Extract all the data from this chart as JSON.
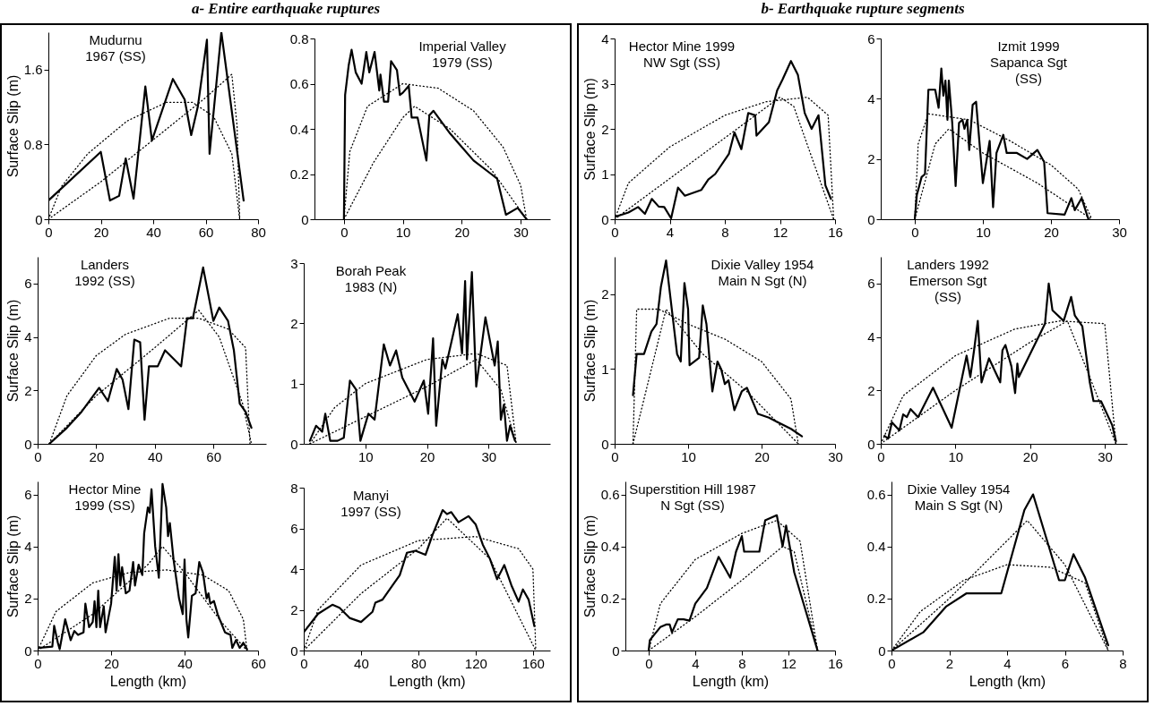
{
  "chart_data": [
    {
      "type": "line",
      "title": "a- Entire earthquake ruptures",
      "ylabel": "Surface Slip (m)",
      "annotations": [
        "Mudurnu\n1967 (SS)"
      ],
      "xlim": [
        0,
        80
      ],
      "xticks": [
        0,
        20,
        40,
        60,
        80
      ],
      "ylim": [
        0,
        2
      ],
      "yticks": [
        0,
        0.8,
        1.6
      ],
      "grid": false,
      "series": [
        {
          "color": "#000000",
          "line_style": "solid",
          "x": [
            0,
            20,
            23.5,
            27,
            29.5,
            32.5,
            37,
            39.5,
            47.5,
            52,
            54.5,
            57,
            60.5,
            61.5,
            66,
            74.5
          ],
          "values": [
            0.2,
            0.72,
            0.2,
            0.25,
            0.65,
            0.22,
            1.42,
            0.84,
            1.5,
            1.28,
            0.9,
            1.2,
            1.92,
            0.7,
            2.0,
            0.2
          ]
        },
        {
          "color": "#000000",
          "line_style": "dotted",
          "x": [
            0,
            5,
            15,
            30,
            45,
            55,
            63,
            70,
            73
          ],
          "values": [
            0,
            0.35,
            0.7,
            1.05,
            1.25,
            1.25,
            1.1,
            0.7,
            0
          ]
        },
        {
          "color": "#000000",
          "line_style": "dotted",
          "x": [
            0,
            20,
            40,
            60,
            70,
            72,
            73
          ],
          "values": [
            0,
            0.4,
            0.85,
            1.3,
            1.55,
            1.0,
            0
          ]
        }
      ]
    },
    {
      "type": "line",
      "annotations": [
        "Imperial Valley\n1979 (SS)"
      ],
      "xlim": [
        -5,
        35
      ],
      "xticks": [
        0,
        10,
        20,
        30
      ],
      "ylim": [
        0,
        0.8
      ],
      "yticks": [
        0,
        0.2,
        0.4,
        0.6,
        0.8
      ],
      "grid": false,
      "series": [
        {
          "color": "#000000",
          "line_style": "solid",
          "x": [
            0,
            0.2,
            0.8,
            1.3,
            2,
            3,
            3.8,
            4.3,
            5.2,
            6,
            6.2,
            6.8,
            7.5,
            8,
            9,
            9.5,
            10,
            11,
            11.5,
            12.5,
            14,
            14.5,
            15.2,
            18,
            22,
            25,
            26,
            27.5,
            29.5,
            31
          ],
          "values": [
            0,
            0.55,
            0.68,
            0.75,
            0.65,
            0.6,
            0.74,
            0.65,
            0.74,
            0.57,
            0.64,
            0.52,
            0.52,
            0.7,
            0.66,
            0.55,
            0.56,
            0.59,
            0.45,
            0.45,
            0.26,
            0.46,
            0.48,
            0.38,
            0.26,
            0.2,
            0.18,
            0.02,
            0.05,
            0
          ]
        },
        {
          "color": "#000000",
          "line_style": "dotted",
          "x": [
            0,
            1,
            4,
            10,
            16,
            22,
            27,
            30,
            31
          ],
          "values": [
            0,
            0.3,
            0.5,
            0.6,
            0.58,
            0.48,
            0.32,
            0.15,
            0
          ]
        },
        {
          "color": "#000000",
          "line_style": "dotted",
          "x": [
            0,
            5,
            10,
            12,
            18,
            25,
            31
          ],
          "values": [
            0,
            0.25,
            0.45,
            0.5,
            0.4,
            0.22,
            0
          ]
        }
      ]
    },
    {
      "type": "line",
      "ylabel": "Surface Slip (m)",
      "annotations": [
        "Landers\n1992 (SS)"
      ],
      "xlim": [
        0,
        78
      ],
      "xticks": [
        0,
        20,
        40,
        60
      ],
      "ylim": [
        0,
        7
      ],
      "yticks": [
        0,
        2,
        4,
        6
      ],
      "grid": false,
      "series": [
        {
          "color": "#000000",
          "line_style": "solid",
          "x": [
            4,
            10,
            15,
            21,
            24,
            27,
            29,
            31,
            33,
            35,
            36.5,
            38,
            41,
            43.5,
            49,
            51,
            53,
            56.5,
            60,
            62,
            65,
            67,
            69,
            71,
            73
          ],
          "values": [
            0,
            0.6,
            1.2,
            2.1,
            1.6,
            2.8,
            2.4,
            1.3,
            3.9,
            3.8,
            0.9,
            2.9,
            2.9,
            3.5,
            2.9,
            4.7,
            4.7,
            6.6,
            4.6,
            5.1,
            4.6,
            3.5,
            1.5,
            1.2,
            0.6
          ]
        },
        {
          "color": "#000000",
          "line_style": "dotted",
          "x": [
            4,
            10,
            20,
            30,
            45,
            55,
            65,
            71,
            72.5
          ],
          "values": [
            0,
            1.8,
            3.3,
            4.1,
            4.7,
            4.7,
            4.3,
            3.6,
            0
          ]
        },
        {
          "color": "#000000",
          "line_style": "dotted",
          "x": [
            4,
            20,
            40,
            55,
            62,
            70,
            73
          ],
          "values": [
            0,
            1.8,
            3.6,
            5.0,
            4.0,
            1.5,
            0
          ]
        }
      ]
    },
    {
      "type": "line",
      "annotations": [
        "Borah Peak\n1983 (N)"
      ],
      "xlim": [
        0,
        40
      ],
      "xticks": [
        10,
        20,
        30
      ],
      "ylim": [
        0,
        3
      ],
      "yticks": [
        0,
        1,
        2,
        3
      ],
      "grid": false,
      "series": [
        {
          "color": "#000000",
          "line_style": "solid",
          "x": [
            1,
            2,
            3,
            3.5,
            4.3,
            5.5,
            6.5,
            7.5,
            8.5,
            9.2,
            10.5,
            11.5,
            13,
            14,
            15,
            16,
            18,
            19.5,
            20.2,
            21,
            21.5,
            22.5,
            23,
            25,
            25.7,
            26.2,
            26.5,
            27.3,
            28,
            29.5,
            31,
            31.5,
            32,
            32.5,
            33,
            33.5,
            34.3
          ],
          "values": [
            0.05,
            0.3,
            0.2,
            0.5,
            0.05,
            0.05,
            0.1,
            1.05,
            0.9,
            0.05,
            0.5,
            0.4,
            1.65,
            1.3,
            1.55,
            1.1,
            0.7,
            1.05,
            0.5,
            1.75,
            0.3,
            1.4,
            1.25,
            2.15,
            1.5,
            2.7,
            1.4,
            2.85,
            0.95,
            2.1,
            1.3,
            1.7,
            0.4,
            0.65,
            0.05,
            0.3,
            0.05
          ]
        },
        {
          "color": "#000000",
          "line_style": "dotted",
          "x": [
            1,
            5,
            10,
            20,
            28,
            33,
            34.5
          ],
          "values": [
            0,
            0.6,
            1.0,
            1.4,
            1.5,
            1.3,
            0
          ]
        },
        {
          "color": "#000000",
          "line_style": "dotted",
          "x": [
            1,
            10,
            20,
            28,
            32,
            34.5
          ],
          "values": [
            0,
            0.45,
            0.95,
            1.4,
            0.9,
            0
          ]
        }
      ]
    },
    {
      "type": "line",
      "ylabel": "Surface Slip (m)",
      "xlabel": "Length (km)",
      "annotations": [
        "Hector Mine\n1999 (SS)"
      ],
      "xlim": [
        0,
        60
      ],
      "xticks": [
        0,
        20,
        40,
        60
      ],
      "ylim": [
        0,
        6.5
      ],
      "yticks": [
        0,
        2,
        4,
        6
      ],
      "grid": false,
      "series": [
        {
          "color": "#000000",
          "line_style": "solid",
          "x": [
            0,
            4,
            4.5,
            5.5,
            6,
            7.5,
            9,
            10,
            11,
            12.5,
            13,
            14,
            15,
            15.5,
            16,
            16.5,
            17,
            18,
            18.5,
            20,
            21,
            21.5,
            22,
            22.5,
            23,
            24,
            25,
            26,
            26.5,
            27.5,
            28.5,
            29,
            30,
            30.5,
            31,
            32,
            33,
            34,
            35,
            35.5,
            36,
            37,
            38.5,
            39.5,
            40,
            40.5,
            41,
            42,
            43,
            44,
            45,
            46,
            46.5,
            47,
            48,
            49,
            51,
            52.5,
            53,
            54,
            55,
            56,
            57
          ],
          "values": [
            0.1,
            0.15,
            0.95,
            0.3,
            0.05,
            1.2,
            0.4,
            0.75,
            0.6,
            0.7,
            1.8,
            0.9,
            1.1,
            1.9,
            0.9,
            2.3,
            0.9,
            1.7,
            0.7,
            1.8,
            3.6,
            2.3,
            3.7,
            2.5,
            3.2,
            2.2,
            2.3,
            3.4,
            2.5,
            3.3,
            2.9,
            4.5,
            5.5,
            5.3,
            6.2,
            4,
            2.8,
            6.4,
            5.5,
            4.4,
            4.9,
            3.5,
            2,
            1.4,
            3.5,
            1.2,
            0.5,
            2.1,
            2.2,
            3.4,
            3,
            2,
            2.2,
            1.8,
            1.9,
            1.4,
            0.7,
            0.6,
            0.1,
            0.4,
            0.1,
            0.3,
            0.05
          ]
        },
        {
          "color": "#000000",
          "line_style": "dotted",
          "x": [
            0,
            5,
            15,
            25,
            35,
            45,
            52,
            56,
            57
          ],
          "values": [
            0,
            1.5,
            2.6,
            3.0,
            3.1,
            2.9,
            2.3,
            1.2,
            0
          ]
        },
        {
          "color": "#000000",
          "line_style": "dotted",
          "x": [
            0,
            15,
            30,
            34,
            40,
            50,
            57
          ],
          "values": [
            0,
            1.4,
            3.3,
            4.0,
            3.0,
            1.1,
            0
          ]
        }
      ]
    },
    {
      "type": "line",
      "xlabel": "Length (km)",
      "annotations": [
        "Manyi\n1997 (SS)"
      ],
      "xlim": [
        0,
        172
      ],
      "xticks": [
        0,
        40,
        80,
        120,
        160
      ],
      "ylim": [
        0,
        8
      ],
      "yticks": [
        0,
        2,
        4,
        6,
        8
      ],
      "grid": false,
      "series": [
        {
          "color": "#000000",
          "line_style": "solid",
          "x": [
            0,
            10,
            20,
            25,
            32,
            40,
            48,
            50,
            55,
            62,
            67,
            72,
            78,
            85,
            90,
            97,
            100,
            103,
            108,
            115,
            120,
            125,
            130,
            135,
            140,
            145,
            150,
            153,
            157,
            161
          ],
          "values": [
            0.9,
            1.8,
            2.25,
            2.1,
            1.6,
            1.4,
            1.9,
            2.35,
            2.5,
            3.2,
            3.7,
            4.8,
            4.9,
            4.7,
            5.7,
            6.9,
            6.7,
            6.8,
            6.3,
            6.6,
            6.2,
            5.2,
            4.5,
            3.5,
            4.2,
            3.2,
            2.4,
            3.0,
            2.5,
            1.2
          ]
        },
        {
          "color": "#000000",
          "line_style": "dotted",
          "x": [
            0,
            10,
            40,
            80,
            120,
            150,
            160,
            162
          ],
          "values": [
            0,
            2.0,
            4.2,
            5.4,
            5.6,
            5.0,
            4.0,
            0
          ]
        },
        {
          "color": "#000000",
          "line_style": "dotted",
          "x": [
            0,
            40,
            80,
            100,
            130,
            162
          ],
          "values": [
            0,
            2.8,
            5.0,
            6.5,
            4.5,
            0
          ]
        }
      ]
    },
    {
      "type": "line",
      "title": "b- Earthquake rupture segments",
      "ylabel": "Surface Slip (m)",
      "annotations": [
        "Hector Mine 1999\nNW Sgt (SS)"
      ],
      "xlim": [
        0,
        16
      ],
      "xticks": [
        0,
        4,
        8,
        12,
        16
      ],
      "ylim": [
        0,
        4
      ],
      "yticks": [
        0,
        1,
        2,
        3,
        4
      ],
      "grid": false,
      "series": [
        {
          "color": "#000000",
          "line_style": "solid",
          "x": [
            0,
            1,
            1.7,
            2.2,
            2.7,
            3.2,
            3.6,
            4.1,
            4.6,
            5.1,
            6.3,
            6.8,
            7.3,
            8.3,
            8.7,
            9.2,
            9.7,
            10.2,
            10.3,
            11.2,
            11.8,
            12.2,
            12.8,
            13.3,
            13.8,
            14.3,
            14.8,
            15.3,
            15.7
          ],
          "values": [
            0.05,
            0.15,
            0.27,
            0.12,
            0.45,
            0.28,
            0.27,
            0.02,
            0.7,
            0.52,
            0.65,
            0.88,
            1.0,
            1.45,
            1.92,
            1.55,
            2.35,
            2.3,
            1.85,
            2.15,
            2.85,
            3.1,
            3.5,
            3.2,
            2.35,
            2.0,
            2.3,
            0.75,
            0.45
          ]
        },
        {
          "color": "#000000",
          "line_style": "dotted",
          "x": [
            0,
            1,
            4,
            8,
            11,
            14,
            15.5,
            15.9
          ],
          "values": [
            0,
            0.8,
            1.6,
            2.3,
            2.6,
            2.7,
            2.3,
            0
          ]
        },
        {
          "color": "#000000",
          "line_style": "dotted",
          "x": [
            0,
            4,
            8,
            12,
            13,
            15.9
          ],
          "values": [
            0,
            0.9,
            1.8,
            2.7,
            2.5,
            0
          ]
        }
      ]
    },
    {
      "type": "line",
      "annotations": [
        "Izmit 1999\nSapanca Sgt\n(SS)"
      ],
      "xlim": [
        -5,
        30
      ],
      "xticks": [
        0,
        10,
        20,
        30
      ],
      "ylim": [
        0,
        6
      ],
      "yticks": [
        0,
        2,
        4,
        6
      ],
      "grid": false,
      "series": [
        {
          "color": "#000000",
          "line_style": "solid",
          "x": [
            0,
            0.3,
            1,
            1.5,
            2,
            3,
            3.5,
            3.9,
            4.2,
            4.5,
            4.8,
            5,
            5.5,
            6,
            6.5,
            7,
            7.3,
            7.7,
            8,
            8.5,
            9,
            10,
            11,
            11.5,
            12,
            13,
            13.5,
            15,
            16.5,
            18,
            19,
            19.5,
            22,
            23,
            23.5,
            24.5,
            25.5
          ],
          "values": [
            0,
            0.8,
            1.4,
            1.5,
            4.3,
            4.3,
            3.7,
            5.0,
            4.1,
            4.6,
            3.3,
            4.6,
            3.2,
            1.1,
            3.2,
            3.3,
            3.0,
            3.3,
            2.3,
            3.8,
            3.9,
            1.2,
            2.6,
            0.4,
            2.2,
            2.8,
            2.2,
            2.2,
            2.0,
            2.3,
            1.9,
            0.2,
            0.15,
            0.7,
            0.3,
            0.7,
            0
          ]
        },
        {
          "color": "#000000",
          "line_style": "dotted",
          "x": [
            0,
            0.5,
            2,
            8,
            14,
            20,
            24,
            26
          ],
          "values": [
            0,
            2.5,
            3.5,
            3.3,
            2.6,
            1.8,
            1.0,
            0
          ]
        },
        {
          "color": "#000000",
          "line_style": "dotted",
          "x": [
            0,
            3,
            5,
            10,
            18,
            26
          ],
          "values": [
            0,
            2.5,
            3.0,
            2.2,
            1.2,
            0
          ]
        }
      ]
    },
    {
      "type": "line",
      "ylabel": "Surface Slip (m)",
      "annotations": [
        "Dixie Valley 1954\nMain N Sgt (N)"
      ],
      "xlim": [
        0,
        30
      ],
      "xticks": [
        0,
        10,
        20,
        30
      ],
      "ylim": [
        0,
        2.5
      ],
      "yticks": [
        0,
        1,
        2
      ],
      "grid": false,
      "series": [
        {
          "color": "#000000",
          "line_style": "solid",
          "x": [
            2.5,
            3,
            4,
            5,
            5.7,
            6.3,
            7,
            8.5,
            9,
            9.5,
            10,
            10.2,
            11.5,
            12,
            12.5,
            13.3,
            14,
            14.5,
            15,
            15.5,
            16.3,
            17.3,
            18,
            19.5,
            21,
            22,
            24,
            25.5
          ],
          "values": [
            0.65,
            1.2,
            1.2,
            1.5,
            1.6,
            2.1,
            2.45,
            1.2,
            1.1,
            2.15,
            1.8,
            1.05,
            1.15,
            1.85,
            1.6,
            0.7,
            1.1,
            1.0,
            0.8,
            0.85,
            0.45,
            0.7,
            0.75,
            0.4,
            0.35,
            0.3,
            0.2,
            0.1
          ]
        },
        {
          "color": "#000000",
          "line_style": "dotted",
          "x": [
            2.5,
            3,
            6,
            10,
            15,
            20,
            24,
            25
          ],
          "values": [
            0,
            1.8,
            1.8,
            1.6,
            1.4,
            1.1,
            0.6,
            0
          ]
        },
        {
          "color": "#000000",
          "line_style": "dotted",
          "x": [
            2.5,
            7,
            12,
            18,
            25
          ],
          "values": [
            0,
            1.8,
            1.2,
            0.7,
            0
          ]
        }
      ]
    },
    {
      "type": "line",
      "annotations": [
        "Landers 1992\nEmerson Sgt\n(SS)"
      ],
      "xlim": [
        0,
        33
      ],
      "xticks": [
        0,
        10,
        20,
        30
      ],
      "ylim": [
        0,
        7
      ],
      "yticks": [
        0,
        2,
        4,
        6
      ],
      "grid": false,
      "series": [
        {
          "color": "#000000",
          "line_style": "solid",
          "x": [
            0.5,
            1,
            1.5,
            2.5,
            3,
            3.5,
            4,
            5,
            7,
            9.5,
            11.5,
            12,
            12.5,
            13,
            13.5,
            14.5,
            16,
            16.3,
            16.7,
            17.5,
            18,
            18.3,
            18.5,
            22,
            22.5,
            23,
            24.5,
            25.5,
            26,
            27,
            28,
            28.5,
            29.5,
            31,
            31.5
          ],
          "values": [
            0.3,
            0.2,
            0.8,
            0.5,
            1.1,
            1.0,
            1.3,
            1.0,
            2.1,
            0.6,
            3.3,
            2.5,
            3.5,
            4.6,
            2.3,
            3.2,
            2.3,
            3.5,
            3.7,
            2.9,
            1.9,
            3.0,
            2.5,
            4.5,
            6.0,
            5.0,
            4.6,
            5.5,
            4.8,
            4.4,
            2.3,
            1.6,
            1.6,
            0.7,
            0.1
          ]
        },
        {
          "color": "#000000",
          "line_style": "dotted",
          "x": [
            0,
            3,
            10,
            18,
            24,
            30,
            31.5
          ],
          "values": [
            0,
            1.8,
            3.3,
            4.3,
            4.6,
            4.5,
            0
          ]
        },
        {
          "color": "#000000",
          "line_style": "dotted",
          "x": [
            0,
            10,
            20,
            25,
            28,
            31.5
          ],
          "values": [
            0,
            2.0,
            3.8,
            4.6,
            2.5,
            0
          ]
        }
      ]
    },
    {
      "type": "line",
      "ylabel": "Surface Slip (m)",
      "xlabel": "Length (km)",
      "annotations": [
        "Superstition Hill 1987\nN Sgt (SS)"
      ],
      "xlim": [
        -2,
        16
      ],
      "xticks": [
        0,
        4,
        8,
        12,
        16
      ],
      "ylim": [
        0,
        0.65
      ],
      "yticks": [
        0,
        0.2,
        0.4,
        0.6
      ],
      "grid": false,
      "series": [
        {
          "color": "#000000",
          "line_style": "solid",
          "x": [
            0,
            0.1,
            1,
            1.5,
            1.8,
            2,
            2.5,
            3,
            3.5,
            4,
            5,
            6,
            7,
            7.5,
            8,
            8.2,
            9.5,
            10,
            11,
            11.5,
            11.8,
            12.5,
            14.5
          ],
          "values": [
            0,
            0.04,
            0.09,
            0.1,
            0.1,
            0.07,
            0.12,
            0.12,
            0.115,
            0.18,
            0.24,
            0.36,
            0.28,
            0.38,
            0.44,
            0.38,
            0.38,
            0.5,
            0.52,
            0.4,
            0.48,
            0.3,
            0
          ]
        },
        {
          "color": "#000000",
          "line_style": "dotted",
          "x": [
            0,
            1,
            4,
            8,
            11,
            13,
            14.5
          ],
          "values": [
            0,
            0.18,
            0.35,
            0.45,
            0.5,
            0.42,
            0
          ]
        },
        {
          "color": "#000000",
          "line_style": "dotted",
          "x": [
            0,
            4,
            8,
            11.5,
            12.5,
            14.5
          ],
          "values": [
            0,
            0.13,
            0.27,
            0.4,
            0.38,
            0
          ]
        }
      ]
    },
    {
      "type": "line",
      "xlabel": "Length (km)",
      "annotations": [
        "Dixie Valley 1954\nMain S Sgt (N)"
      ],
      "xlim": [
        0,
        8
      ],
      "xticks": [
        0,
        2,
        4,
        6,
        8
      ],
      "ylim": [
        0,
        0.65
      ],
      "yticks": [
        0,
        0.2,
        0.4,
        0.6
      ],
      "grid": false,
      "series": [
        {
          "color": "#000000",
          "line_style": "solid",
          "x": [
            0,
            1.1,
            1.9,
            2.6,
            3.8,
            4.6,
            4.9,
            5.8,
            6,
            6.3,
            6.7,
            7.5
          ],
          "values": [
            0,
            0.07,
            0.17,
            0.22,
            0.22,
            0.54,
            0.6,
            0.27,
            0.27,
            0.37,
            0.28,
            0.02
          ]
        },
        {
          "color": "#000000",
          "line_style": "dotted",
          "x": [
            0,
            1,
            2.5,
            4,
            5.5,
            6.7,
            7.5
          ],
          "values": [
            0,
            0.15,
            0.27,
            0.33,
            0.32,
            0.26,
            0
          ]
        },
        {
          "color": "#000000",
          "line_style": "dotted",
          "x": [
            0,
            2,
            4.7,
            6,
            7.5
          ],
          "values": [
            0,
            0.2,
            0.5,
            0.33,
            0
          ]
        }
      ]
    }
  ]
}
